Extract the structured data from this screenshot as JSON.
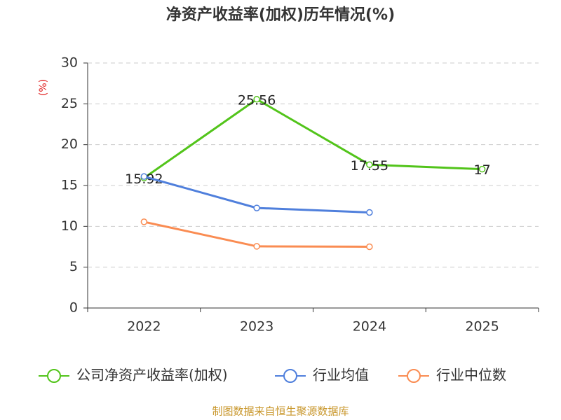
{
  "chart_data": {
    "type": "line",
    "title": "净资产收益率(加权)历年情况(%)",
    "y_label": "(%)",
    "categories": [
      "2022",
      "2023",
      "2024",
      "2025"
    ],
    "series": [
      {
        "name": "公司净资产收益率(加权)",
        "color": "#52c41a",
        "values": [
          15.92,
          25.56,
          17.55,
          17
        ],
        "show_labels": true
      },
      {
        "name": "行业均值",
        "color": "#4f7fdc",
        "values": [
          16.1,
          12.25,
          11.7,
          null
        ]
      },
      {
        "name": "行业中位数",
        "color": "#fa8c52",
        "values": [
          10.55,
          7.55,
          7.5,
          null
        ]
      }
    ],
    "ylim": [
      0,
      30
    ],
    "yticks": [
      0,
      5,
      10,
      15,
      20,
      25,
      30
    ],
    "grid": true,
    "source": "制图数据来自恒生聚源数据库"
  }
}
